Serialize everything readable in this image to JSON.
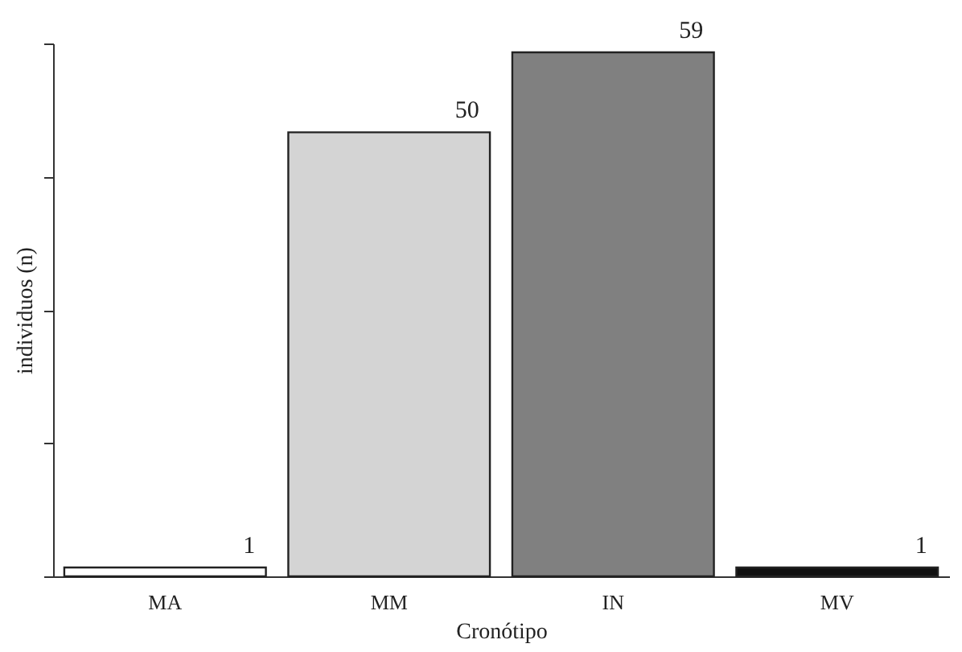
{
  "chart_data": {
    "type": "bar",
    "xlabel": "Cronótipo",
    "ylabel": "individuos (n)",
    "categories": [
      "MA",
      "MM",
      "IN",
      "MV"
    ],
    "values": [
      1,
      50,
      59,
      1
    ],
    "colors": [
      "#ffffff",
      "#d4d4d4",
      "#808080",
      "#111111"
    ],
    "ylim": [
      0,
      60
    ],
    "yticks": [
      {
        "value": 0,
        "label": null
      },
      {
        "value": 15,
        "label": null
      },
      {
        "value": 30,
        "label": null
      },
      {
        "value": 45,
        "label": null
      },
      {
        "value": 60,
        "label": null
      }
    ],
    "tick_labels": "x",
    "data_labels": true,
    "grid": false
  }
}
